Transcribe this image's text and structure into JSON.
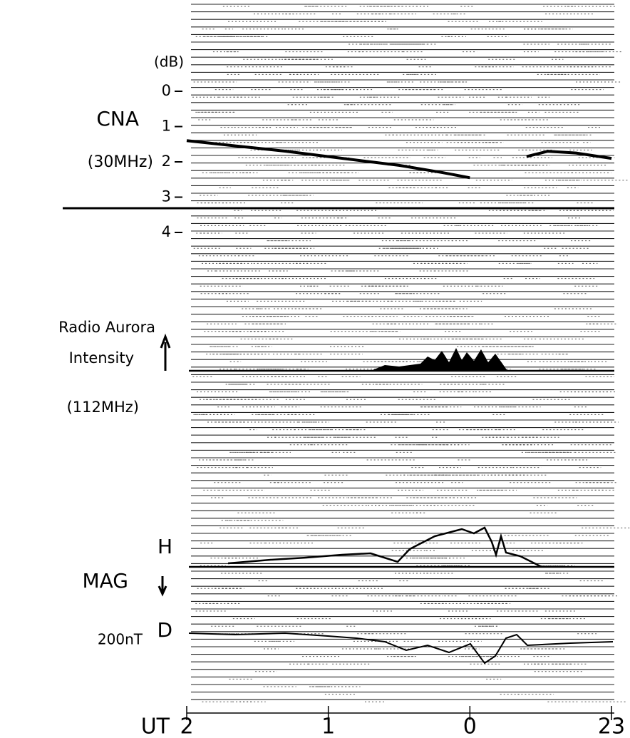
{
  "chart_data": {
    "type": "line",
    "ylabel": "(dB)",
    "xlabel": "UT",
    "ylim": [
      0,
      4
    ],
    "yticks": [
      0,
      1,
      2,
      3,
      4
    ],
    "xlim": [
      2,
      -1
    ],
    "xticks": [
      2,
      1,
      0,
      {
        "value": -1,
        "label": "23"
      }
    ],
    "x": [
      2.0,
      1.65,
      1.3,
      1.0,
      0.5,
      0.2,
      0.0,
      -0.2,
      -0.4,
      -0.55,
      -0.75,
      -1.0
    ],
    "values": [
      1.4,
      1.55,
      1.7,
      1.85,
      2.1,
      2.3,
      2.45,
      null,
      1.85,
      1.7,
      1.75,
      1.9
    ],
    "color": "#000000",
    "annotations": {
      "cna": "CNA",
      "cna_freq": "(30MHz)",
      "radio_1": "Radio Aurora",
      "radio_2": "Intensity",
      "radio_freq": "(112MHz)",
      "h": "H",
      "mag": "MAG",
      "d": "D",
      "scale": "200nT"
    }
  }
}
